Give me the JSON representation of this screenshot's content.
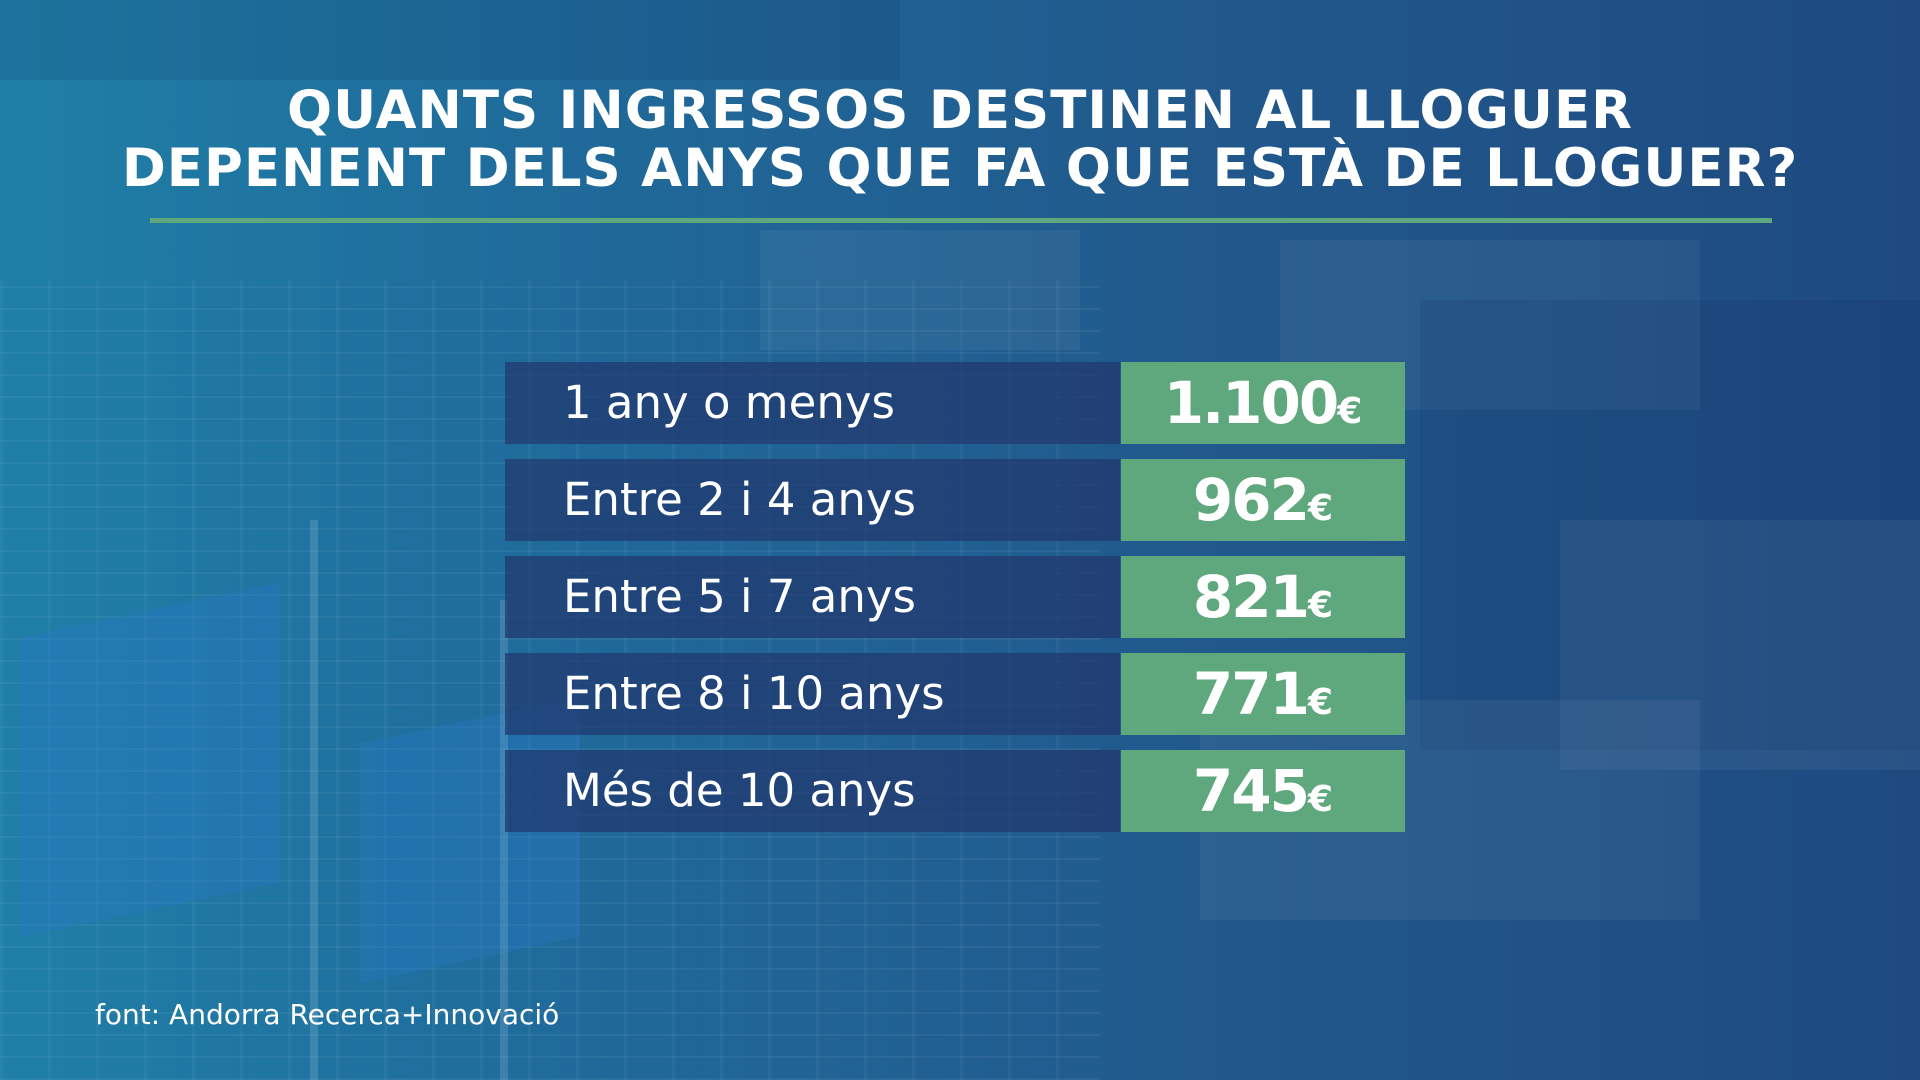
{
  "title": {
    "line1": "QUANTS INGRESSOS DESTINEN AL LLOGUER",
    "line2": "DEPENENT DELS ANYS QUE FA QUE ESTÀ DE LLOGUER?"
  },
  "colors": {
    "accent_green": "#5fa77d",
    "label_box": "#21376e",
    "background_start": "#1f7fa7",
    "background_end": "#1e4a80",
    "text": "#ffffff"
  },
  "chart_data": {
    "type": "table",
    "title": "QUANTS INGRESSOS DESTINEN AL LLOGUER DEPENENT DELS ANYS QUE FA QUE ESTÀ DE LLOGUER?",
    "unit": "€",
    "categories": [
      "1 any o menys",
      "Entre 2 i 4 anys",
      "Entre 5 i 7 anys",
      "Entre 8 i 10 anys",
      "Més de 10 anys"
    ],
    "values": [
      1100,
      962,
      821,
      771,
      745
    ],
    "rows": [
      {
        "label": "1 any o menys",
        "value_text": "1.100",
        "unit": "€"
      },
      {
        "label": "Entre 2 i 4 anys",
        "value_text": "962",
        "unit": "€"
      },
      {
        "label": "Entre 5 i 7 anys",
        "value_text": "821",
        "unit": "€"
      },
      {
        "label": "Entre 8 i 10 anys",
        "value_text": "771",
        "unit": "€"
      },
      {
        "label": "Més de 10 anys",
        "value_text": "745",
        "unit": "€"
      }
    ]
  },
  "source": "font: Andorra Recerca+Innovació"
}
